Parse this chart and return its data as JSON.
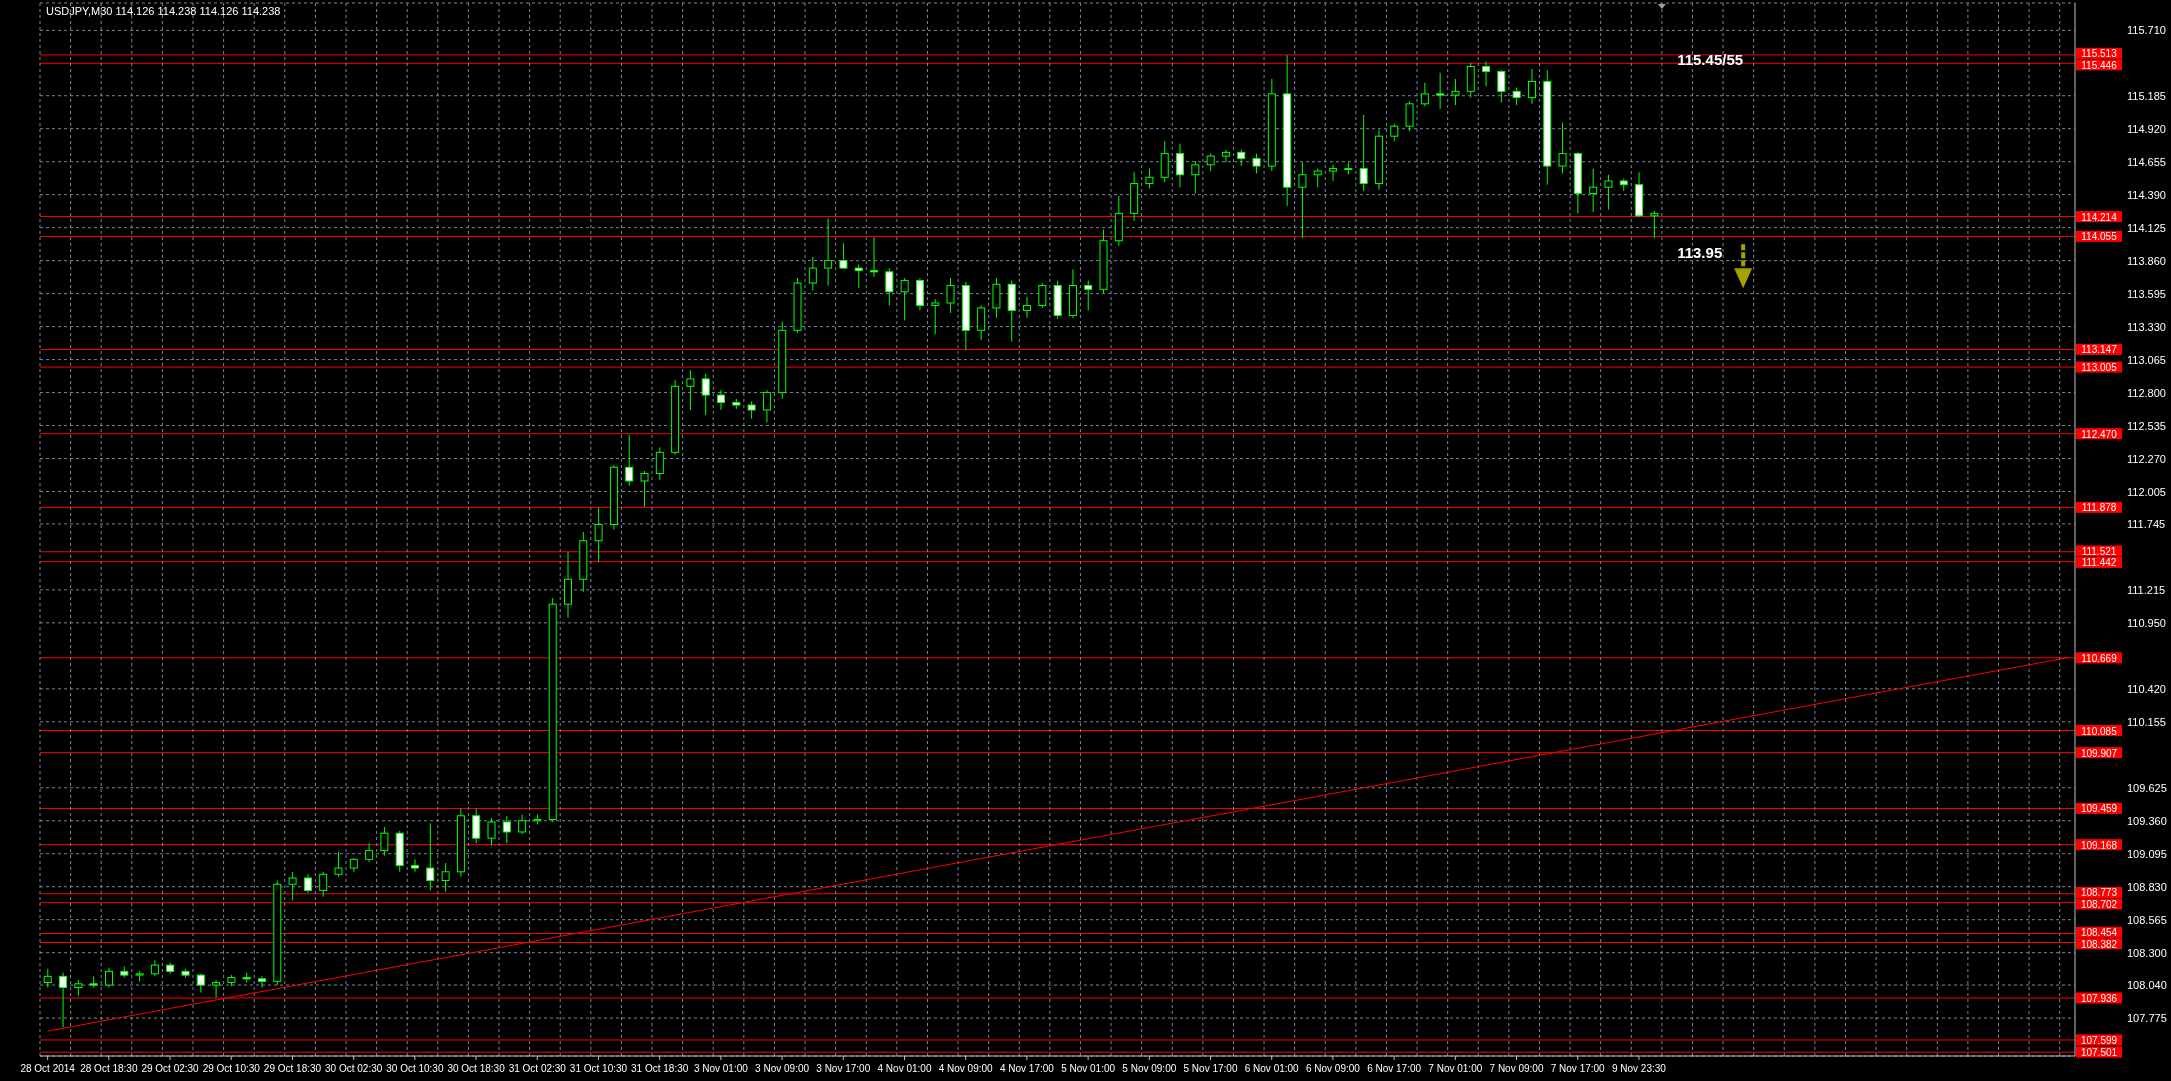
{
  "chart_data": {
    "type": "candlestick",
    "title": "USDJPY,M30 114.126 114.238 114.126 114.238",
    "categories": [
      "28 Oct 2014",
      null,
      null,
      null,
      "28 Oct 18:30",
      null,
      null,
      null,
      "29 Oct 02:30",
      null,
      null,
      null,
      "29 Oct 10:30",
      null,
      null,
      null,
      "29 Oct 18:30",
      null,
      null,
      null,
      "30 Oct 02:30",
      null,
      null,
      null,
      "30 Oct 10:30",
      null,
      null,
      null,
      "30 Oct 18:30",
      null,
      null,
      null,
      "31 Oct 02:30",
      null,
      null,
      null,
      "31 Oct 10:30",
      null,
      null,
      null,
      "31 Oct 18:30",
      null,
      null,
      null,
      "3 Nov 01:00",
      null,
      null,
      null,
      "3 Nov 09:00",
      null,
      null,
      null,
      "3 Nov 17:00",
      null,
      null,
      null,
      "4 Nov 01:00",
      null,
      null,
      null,
      "4 Nov 09:00",
      null,
      null,
      null,
      "4 Nov 17:00",
      null,
      null,
      null,
      "5 Nov 01:00",
      null,
      null,
      null,
      "5 Nov 09:00",
      null,
      null,
      null,
      "5 Nov 17:00",
      null,
      null,
      null,
      "6 Nov 01:00",
      null,
      null,
      null,
      "6 Nov 09:00",
      null,
      null,
      null,
      "6 Nov 17:00",
      null,
      null,
      null,
      "7 Nov 01:00",
      null,
      null,
      null,
      "7 Nov 09:00",
      null,
      null,
      null,
      "7 Nov 17:00",
      null,
      null,
      null,
      "9 Nov 23:30",
      null,
      null,
      null,
      null,
      null,
      null,
      null,
      null,
      null,
      null,
      null,
      null,
      null,
      null,
      null,
      null,
      null,
      null,
      null,
      null,
      null,
      null,
      null,
      null,
      null,
      null,
      null,
      null
    ],
    "color": "#00ff00",
    "ohlc": [
      [
        108.06,
        108.17,
        108.02,
        108.11
      ],
      [
        108.11,
        108.14,
        107.7,
        108.02
      ],
      [
        108.02,
        108.08,
        107.95,
        108.05
      ],
      [
        108.05,
        108.11,
        108.02,
        108.04
      ],
      [
        108.04,
        108.18,
        108.02,
        108.15
      ],
      [
        108.15,
        108.19,
        108.1,
        108.12
      ],
      [
        108.12,
        108.15,
        108.07,
        108.13
      ],
      [
        108.13,
        108.24,
        108.11,
        108.2
      ],
      [
        108.2,
        108.22,
        108.13,
        108.15
      ],
      [
        108.15,
        108.17,
        108.1,
        108.12
      ],
      [
        108.12,
        108.13,
        107.98,
        108.04
      ],
      [
        108.04,
        108.08,
        107.94,
        108.06
      ],
      [
        108.06,
        108.12,
        108.03,
        108.1
      ],
      [
        108.1,
        108.14,
        108.06,
        108.09
      ],
      [
        108.09,
        108.11,
        108.02,
        108.07
      ],
      [
        108.07,
        108.88,
        108.04,
        108.85
      ],
      [
        108.85,
        108.95,
        108.72,
        108.9
      ],
      [
        108.9,
        108.93,
        108.78,
        108.8
      ],
      [
        108.8,
        108.95,
        108.75,
        108.93
      ],
      [
        108.93,
        109.11,
        108.91,
        108.98
      ],
      [
        108.98,
        109.06,
        108.95,
        109.05
      ],
      [
        109.05,
        109.18,
        109.03,
        109.12
      ],
      [
        109.12,
        109.31,
        109.08,
        109.26
      ],
      [
        109.26,
        109.28,
        108.95,
        109.0
      ],
      [
        109.0,
        109.05,
        108.95,
        108.98
      ],
      [
        108.98,
        109.34,
        108.8,
        108.88
      ],
      [
        108.88,
        109.02,
        108.79,
        108.95
      ],
      [
        108.95,
        109.46,
        108.91,
        109.4
      ],
      [
        109.4,
        109.46,
        109.18,
        109.22
      ],
      [
        109.22,
        109.38,
        109.16,
        109.35
      ],
      [
        109.35,
        109.4,
        109.18,
        109.27
      ],
      [
        109.27,
        109.41,
        109.25,
        109.36
      ],
      [
        109.36,
        109.41,
        109.33,
        109.37
      ],
      [
        109.37,
        111.15,
        109.35,
        111.1
      ],
      [
        111.1,
        111.52,
        110.99,
        111.3
      ],
      [
        111.3,
        111.68,
        111.2,
        111.61
      ],
      [
        111.61,
        111.88,
        111.44,
        111.74
      ],
      [
        111.74,
        112.22,
        111.7,
        112.2
      ],
      [
        112.2,
        112.46,
        112.05,
        112.09
      ],
      [
        112.09,
        112.17,
        111.88,
        112.15
      ],
      [
        112.15,
        112.36,
        112.1,
        112.32
      ],
      [
        112.32,
        112.9,
        112.3,
        112.85
      ],
      [
        112.85,
        112.98,
        112.66,
        112.91
      ],
      [
        112.91,
        112.95,
        112.62,
        112.78
      ],
      [
        112.78,
        112.82,
        112.66,
        112.72
      ],
      [
        112.72,
        112.75,
        112.67,
        112.7
      ],
      [
        112.7,
        112.73,
        112.59,
        112.66
      ],
      [
        112.66,
        112.82,
        112.56,
        112.8
      ],
      [
        112.8,
        113.37,
        112.75,
        113.3
      ],
      [
        113.3,
        113.72,
        113.28,
        113.68
      ],
      [
        113.68,
        113.89,
        113.62,
        113.8
      ],
      [
        113.8,
        114.2,
        113.66,
        113.86
      ],
      [
        113.86,
        114.0,
        113.8,
        113.8
      ],
      [
        113.8,
        113.83,
        113.64,
        113.78
      ],
      [
        113.78,
        114.05,
        113.73,
        113.77
      ],
      [
        113.77,
        113.8,
        113.5,
        113.61
      ],
      [
        113.61,
        113.72,
        113.38,
        113.7
      ],
      [
        113.7,
        113.72,
        113.46,
        113.5
      ],
      [
        113.5,
        113.55,
        113.27,
        113.52
      ],
      [
        113.52,
        113.72,
        113.44,
        113.66
      ],
      [
        113.66,
        113.69,
        113.14,
        113.3
      ],
      [
        113.3,
        113.5,
        113.22,
        113.48
      ],
      [
        113.48,
        113.72,
        113.4,
        113.67
      ],
      [
        113.67,
        113.7,
        113.21,
        113.46
      ],
      [
        113.46,
        113.57,
        113.4,
        113.5
      ],
      [
        113.5,
        113.68,
        113.48,
        113.66
      ],
      [
        113.66,
        113.7,
        113.39,
        113.42
      ],
      [
        113.42,
        113.79,
        113.4,
        113.66
      ],
      [
        113.66,
        113.7,
        113.46,
        113.63
      ],
      [
        113.63,
        114.11,
        113.6,
        114.02
      ],
      [
        114.02,
        114.38,
        113.98,
        114.24
      ],
      [
        114.24,
        114.57,
        114.18,
        114.48
      ],
      [
        114.48,
        114.6,
        114.44,
        114.53
      ],
      [
        114.53,
        114.82,
        114.49,
        114.72
      ],
      [
        114.72,
        114.8,
        114.45,
        114.55
      ],
      [
        114.55,
        114.66,
        114.4,
        114.63
      ],
      [
        114.63,
        114.72,
        114.58,
        114.7
      ],
      [
        114.7,
        114.75,
        114.65,
        114.73
      ],
      [
        114.73,
        114.75,
        114.62,
        114.68
      ],
      [
        114.68,
        114.72,
        114.56,
        114.62
      ],
      [
        114.62,
        115.32,
        114.58,
        115.2
      ],
      [
        115.2,
        115.51,
        114.3,
        114.45
      ],
      [
        114.45,
        114.65,
        114.04,
        114.55
      ],
      [
        114.55,
        114.6,
        114.45,
        114.58
      ],
      [
        114.58,
        114.63,
        114.5,
        114.6
      ],
      [
        114.6,
        114.65,
        114.55,
        114.6
      ],
      [
        114.6,
        115.03,
        114.42,
        114.48
      ],
      [
        114.48,
        114.91,
        114.43,
        114.86
      ],
      [
        114.86,
        114.96,
        114.82,
        114.94
      ],
      [
        114.94,
        115.14,
        114.9,
        115.12
      ],
      [
        115.12,
        115.29,
        115.1,
        115.2
      ],
      [
        115.2,
        115.37,
        115.08,
        115.19
      ],
      [
        115.19,
        115.32,
        115.11,
        115.22
      ],
      [
        115.22,
        115.45,
        115.17,
        115.42
      ],
      [
        115.42,
        115.46,
        115.26,
        115.38
      ],
      [
        115.38,
        115.39,
        115.13,
        115.22
      ],
      [
        115.22,
        115.25,
        115.11,
        115.17
      ],
      [
        115.17,
        115.4,
        115.12,
        115.3
      ],
      [
        115.3,
        115.39,
        114.47,
        114.62
      ],
      [
        114.62,
        114.97,
        114.56,
        114.72
      ],
      [
        114.72,
        114.73,
        114.24,
        114.4
      ],
      [
        114.4,
        114.6,
        114.25,
        114.45
      ],
      [
        114.45,
        114.55,
        114.27,
        114.5
      ],
      [
        114.5,
        114.52,
        114.42,
        114.47
      ],
      [
        114.47,
        114.57,
        114.21,
        114.22
      ],
      [
        114.22,
        114.26,
        114.04,
        114.24
      ],
      null,
      null,
      null,
      null,
      null,
      null,
      null,
      null,
      null,
      null,
      null,
      null,
      null,
      null,
      null,
      null,
      null,
      null,
      null,
      null,
      null,
      null,
      null,
      null,
      null,
      null,
      null
    ],
    "series": [
      {
        "type": "line",
        "color": "#ff0000",
        "values": [
          107.67,
          null,
          null,
          null,
          null,
          null,
          null,
          null,
          null,
          null,
          null,
          null,
          null,
          null,
          null,
          null,
          null,
          null,
          null,
          null,
          null,
          null,
          null,
          null,
          null,
          null,
          null,
          null,
          null,
          null,
          null,
          null,
          null,
          null,
          null,
          null,
          null,
          null,
          null,
          null,
          null,
          null,
          null,
          null,
          null,
          null,
          null,
          null,
          null,
          null,
          null,
          null,
          null,
          null,
          null,
          null,
          null,
          null,
          null,
          null,
          null,
          null,
          null,
          null,
          null,
          null,
          null,
          null,
          null,
          null,
          null,
          null,
          null,
          null,
          null,
          null,
          null,
          null,
          null,
          null,
          null,
          null,
          null,
          null,
          null,
          null,
          null,
          null,
          null,
          null,
          null,
          null,
          null,
          null,
          null,
          null,
          null,
          null,
          null,
          null,
          null,
          null,
          null,
          null,
          null,
          null,
          null,
          null,
          null,
          null,
          null,
          null,
          null,
          null,
          null,
          null,
          null,
          null,
          null,
          null,
          null,
          null,
          null,
          null,
          null,
          null,
          null,
          null,
          null,
          null,
          null,
          null,
          110.67
        ]
      }
    ],
    "ylim": [
      107.47,
      115.93
    ],
    "yticks": [
      107.775,
      {
        "value": 108.04,
        "label": "108.040"
      },
      {
        "value": 108.3,
        "label": "108.300"
      },
      108.565,
      {
        "value": 108.83,
        "label": "108.830"
      },
      109.095,
      {
        "value": 109.36,
        "label": "109.360"
      },
      109.625,
      110.155,
      {
        "value": 110.42,
        "label": "110.420"
      },
      {
        "value": 110.95,
        "label": "110.950"
      },
      111.215,
      111.745,
      112.005,
      {
        "value": 112.27,
        "label": "112.270"
      },
      112.535,
      {
        "value": 112.8,
        "label": "112.800"
      },
      113.065,
      {
        "value": 113.33,
        "label": "113.330"
      },
      113.595,
      {
        "value": 113.86,
        "label": "113.860"
      },
      114.125,
      {
        "value": 114.39,
        "label": "114.390"
      },
      114.655,
      {
        "value": 114.92,
        "label": "114.920"
      },
      115.185,
      {
        "value": 115.71,
        "label": "115.710"
      }
    ],
    "grid": true,
    "ref_lines": [
      {
        "axis": "y",
        "value": 115.513,
        "label": "115.513",
        "color": "#ff0000"
      },
      {
        "axis": "y",
        "value": 115.446,
        "label": "115.446",
        "color": "#ff0000"
      },
      {
        "axis": "y",
        "value": 114.214,
        "label": "114.214",
        "color": "#ff0000"
      },
      {
        "axis": "y",
        "value": 114.055,
        "label": "114.055",
        "color": "#ff0000"
      },
      {
        "axis": "y",
        "value": 113.147,
        "label": "113.147",
        "color": "#ff0000"
      },
      {
        "axis": "y",
        "value": 113.005,
        "label": "113.005",
        "color": "#ff0000"
      },
      {
        "axis": "y",
        "value": 112.47,
        "label": "112.470",
        "color": "#ff0000"
      },
      {
        "axis": "y",
        "value": 111.878,
        "label": "111.878",
        "color": "#ff0000"
      },
      {
        "axis": "y",
        "value": 111.521,
        "label": "111.521",
        "color": "#ff0000"
      },
      {
        "axis": "y",
        "value": 111.442,
        "label": "111.442",
        "color": "#ff0000"
      },
      {
        "axis": "y",
        "value": 110.669,
        "label": "110.669",
        "color": "#ff0000"
      },
      {
        "axis": "y",
        "value": 110.085,
        "label": "110.085",
        "color": "#ff0000"
      },
      {
        "axis": "y",
        "value": 109.907,
        "label": "109.907",
        "color": "#ff0000"
      },
      {
        "axis": "y",
        "value": 109.459,
        "label": "109.459",
        "color": "#ff0000"
      },
      {
        "axis": "y",
        "value": 109.168,
        "label": "109.168",
        "color": "#ff0000"
      },
      {
        "axis": "y",
        "value": 108.773,
        "label": "108.773",
        "color": "#ff0000"
      },
      {
        "axis": "y",
        "value": 108.702,
        "label": "108.702",
        "color": "#ff0000"
      },
      {
        "axis": "y",
        "value": 108.454,
        "label": "108.454",
        "color": "#ff0000"
      },
      {
        "axis": "y",
        "value": 108.382,
        "label": "108.382",
        "color": "#ff0000"
      },
      {
        "axis": "y",
        "value": 107.936,
        "label": "107.936",
        "color": "#ff0000"
      },
      {
        "axis": "y",
        "value": 107.599,
        "label": "107.599",
        "color": "#ff0000"
      },
      {
        "axis": "y",
        "value": 107.501,
        "label": "107.501",
        "color": "#ff0000"
      }
    ],
    "annotations": [
      {
        "text": "115.45/55",
        "y": 115.48
      },
      "113.95"
    ]
  }
}
